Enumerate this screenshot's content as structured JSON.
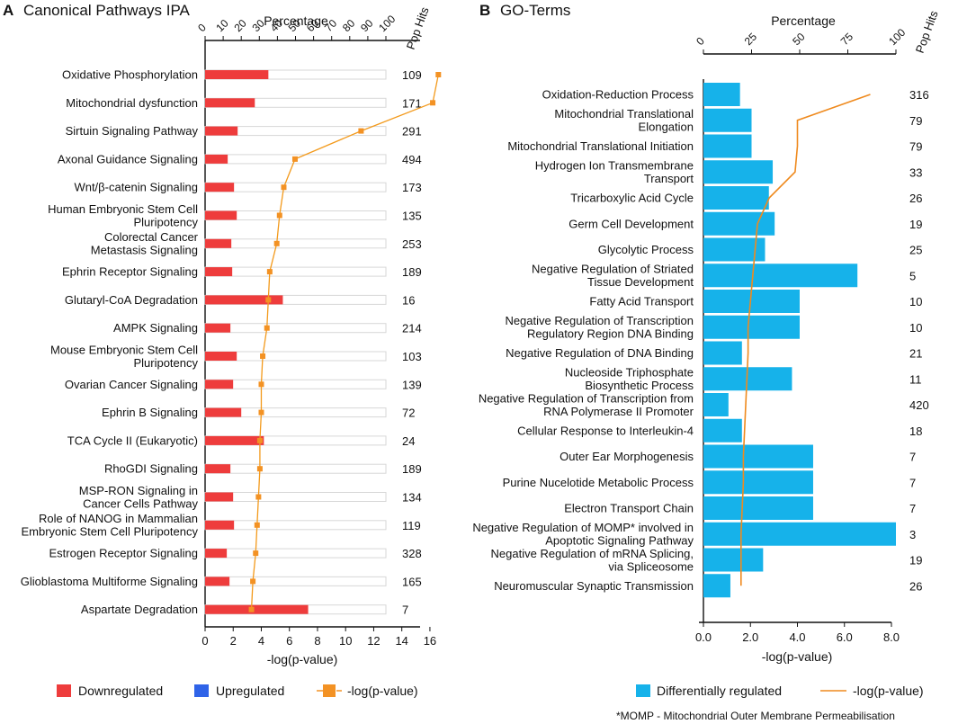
{
  "colors": {
    "down": "#ee3c3c",
    "up": "#2f63e8",
    "pval_a": "#f39a1c",
    "pval_marker": "#f39224",
    "go_bar": "#16b2ea",
    "pval_b": "#ef8a1e",
    "axis": "#111111",
    "bar_track": "#d7d7d7"
  },
  "panels": {
    "a": {
      "letter": "A",
      "title": "Canonical Pathways IPA"
    },
    "b": {
      "letter": "B",
      "title": "GO-Terms"
    }
  },
  "legend_a": {
    "down": "Downregulated",
    "up": "Upregulated",
    "pval": "-log(p-value)"
  },
  "legend_b": {
    "diff": "Differentially regulated",
    "pval": "-log(p-value)"
  },
  "footnote": "*MOMP - Mitochondrial Outer Membrane Permeabilisation",
  "chart_data": [
    {
      "type": "bar",
      "orientation": "horizontal",
      "title": "Canonical Pathways IPA",
      "top_axis": {
        "label": "Percentage",
        "range": [
          0,
          100
        ],
        "ticks": [
          "0",
          "10",
          "20",
          "30",
          "40",
          "50",
          "60",
          "70",
          "80",
          "90",
          "100"
        ]
      },
      "bottom_axis": {
        "label": "-log(p-value)",
        "range": [
          0,
          16
        ],
        "ticks": [
          "0",
          "2",
          "4",
          "6",
          "8",
          "10",
          "12",
          "14",
          "16"
        ]
      },
      "pop_hits_label": "Pop Hits",
      "categories": [
        "Oxidative Phosphorylation",
        "Mitochondrial dysfunction",
        "Sirtuin Signaling Pathway",
        "Axonal Guidance Signaling",
        "Wnt/β-catenin Signaling",
        "Human Embryonic Stem Cell Pluripotency",
        "Colorectal Cancer Metastasis Signaling",
        "Ephrin Receptor Signaling",
        "Glutaryl-CoA Degradation",
        "AMPK Signaling",
        "Mouse Embryonic Stem Cell Pluripotency",
        "Ovarian Cancer Signaling",
        "Ephrin B Signaling",
        "TCA Cycle II (Eukaryotic)",
        "RhoGDI Signaling",
        "MSP-RON Signaling in Cancer Cells Pathway",
        "Role of NANOG in Mammalian Embryonic Stem Cell Pluripotency",
        "Estrogen Receptor Signaling",
        "Glioblastoma Multiforme Signaling",
        "Aspartate Degradation"
      ],
      "category_lines": [
        [
          "Oxidative Phosphorylation"
        ],
        [
          "Mitochondrial dysfunction"
        ],
        [
          "Sirtuin Signaling Pathway"
        ],
        [
          "Axonal Guidance Signaling"
        ],
        [
          "Wnt/β-catenin Signaling"
        ],
        [
          "Human Embryonic Stem Cell",
          "Pluripotency"
        ],
        [
          "Colorectal Cancer",
          "Metastasis Signaling"
        ],
        [
          "Ephrin Receptor Signaling"
        ],
        [
          "Glutaryl-CoA Degradation"
        ],
        [
          "AMPK Signaling"
        ],
        [
          "Mouse Embryonic Stem Cell",
          "Pluripotency"
        ],
        [
          "Ovarian Cancer Signaling"
        ],
        [
          "Ephrin B Signaling"
        ],
        [
          "TCA Cycle II (Eukaryotic)"
        ],
        [
          "RhoGDI Signaling"
        ],
        [
          "MSP-RON Signaling in",
          "Cancer Cells Pathway"
        ],
        [
          "Role of NANOG in Mammalian",
          "Embryonic Stem Cell Pluripotency"
        ],
        [
          "Estrogen Receptor Signaling"
        ],
        [
          "Glioblastoma Multiforme Signaling"
        ],
        [
          "Aspartate Degradation"
        ]
      ],
      "series": [
        {
          "name": "Downregulated",
          "unit": "percentage",
          "values": [
            35,
            27.5,
            18,
            12.5,
            16,
            17.5,
            14.5,
            15,
            43,
            14,
            17.5,
            15.5,
            20,
            32.5,
            14,
            15.5,
            16,
            12,
            13.5,
            57
          ]
        },
        {
          "name": "Upregulated",
          "unit": "percentage",
          "values": [
            0,
            0,
            0,
            0,
            0,
            0,
            0,
            0,
            0,
            0,
            0,
            0,
            0,
            0,
            0,
            0,
            0,
            0,
            0,
            0
          ]
        },
        {
          "name": "-log(p-value)",
          "unit": "-log(p-value)",
          "values": [
            16.6,
            16.2,
            11.1,
            6.4,
            5.6,
            5.3,
            5.1,
            4.6,
            4.5,
            4.4,
            4.1,
            4.0,
            4.0,
            3.9,
            3.9,
            3.8,
            3.7,
            3.6,
            3.4,
            3.3
          ]
        }
      ],
      "pop_hits": [
        "109",
        "171",
        "291",
        "494",
        "173",
        "135",
        "253",
        "189",
        "16",
        "214",
        "103",
        "139",
        "72",
        "24",
        "189",
        "134",
        "119",
        "328",
        "165",
        "7"
      ],
      "legend": [
        "Downregulated",
        "Upregulated",
        "-log(p-value)"
      ],
      "legend_position": "bottom"
    },
    {
      "type": "bar",
      "orientation": "horizontal",
      "title": "GO-Terms",
      "top_axis": {
        "label": "Percentage",
        "range": [
          0,
          100
        ],
        "ticks": [
          "0",
          "25",
          "50",
          "75",
          "100"
        ]
      },
      "bottom_axis": {
        "label": "-log(p-value)",
        "range": [
          0,
          8
        ],
        "ticks": [
          "0.0",
          "2.0",
          "4.0",
          "6.0",
          "8.0"
        ]
      },
      "pop_hits_label": "Pop Hits",
      "categories": [
        "Oxidation-Reduction Process",
        "Mitochondrial Translational Elongation",
        "Mitochondrial Translational Initiation",
        "Hydrogen Ion Transmembrane Transport",
        "Tricarboxylic Acid Cycle",
        "Germ Cell Development",
        "Glycolytic Process",
        "Negative Regulation of Striated Tissue Development",
        "Fatty Acid Transport",
        "Negative Regulation of Transcription Regulatory Region DNA Binding",
        "Negative Regulation of DNA Binding",
        "Nucleoside Triphosphate Biosynthetic Process",
        "Negative Regulation of Transcription from RNA Polymerase II Promoter",
        "Cellular Response to Interleukin-4",
        "Outer Ear Morphogenesis",
        "Purine Nucelotide Metabolic Process",
        "Electron Transport Chain",
        "Negative Regulation of MOMP* involved in Apoptotic Signaling Pathway",
        "Negative Regulation of mRNA Splicing, via Spliceosome",
        "Neuromuscular Synaptic Transmission"
      ],
      "category_lines": [
        [
          "Oxidation-Reduction Process"
        ],
        [
          "Mitochondrial Translational",
          "Elongation"
        ],
        [
          "Mitochondrial Translational Initiation"
        ],
        [
          "Hydrogen Ion Transmembrane",
          "Transport"
        ],
        [
          "Tricarboxylic Acid Cycle"
        ],
        [
          "Germ Cell Development"
        ],
        [
          "Glycolytic Process"
        ],
        [
          "Negative Regulation of Striated",
          "Tissue Development"
        ],
        [
          "Fatty Acid Transport"
        ],
        [
          "Negative Regulation of Transcription",
          "Regulatory Region DNA Binding"
        ],
        [
          "Negative Regulation of DNA Binding"
        ],
        [
          "Nucleoside Triphosphate",
          "Biosynthetic Process"
        ],
        [
          "Negative Regulation of Transcription from",
          "RNA Polymerase II Promoter"
        ],
        [
          "Cellular Response to Interleukin-4"
        ],
        [
          "Outer Ear Morphogenesis"
        ],
        [
          "Purine Nucelotide Metabolic Process"
        ],
        [
          "Electron Transport Chain"
        ],
        [
          "Negative Regulation of MOMP* involved in",
          "Apoptotic Signaling Pathway"
        ],
        [
          "Negative Regulation of mRNA Splicing,",
          "via Spliceosome"
        ],
        [
          "Neuromuscular Synaptic Transmission"
        ]
      ],
      "series": [
        {
          "name": "Differentially regulated",
          "unit": "percentage",
          "values": [
            19,
            25,
            25,
            36,
            34,
            37,
            32,
            80,
            50,
            50,
            20,
            46,
            13,
            20,
            57,
            57,
            57,
            100,
            31,
            14
          ]
        },
        {
          "name": "-log(p-value)",
          "unit": "-log(p-value)",
          "values": [
            7.1,
            4.0,
            4.0,
            3.9,
            2.8,
            2.3,
            2.2,
            2.1,
            2.0,
            1.9,
            1.9,
            1.85,
            1.8,
            1.75,
            1.7,
            1.7,
            1.65,
            1.6,
            1.6,
            1.6
          ]
        }
      ],
      "pop_hits": [
        "316",
        "79",
        "79",
        "33",
        "26",
        "19",
        "25",
        "5",
        "10",
        "10",
        "21",
        "11",
        "420",
        "18",
        "7",
        "7",
        "7",
        "3",
        "19",
        "26"
      ],
      "legend": [
        "Differentially regulated",
        "-log(p-value)"
      ],
      "legend_position": "bottom"
    }
  ]
}
